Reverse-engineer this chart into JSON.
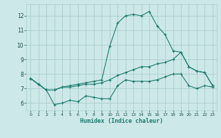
{
  "xlabel": "Humidex (Indice chaleur)",
  "x_ticks": [
    0,
    1,
    2,
    3,
    4,
    5,
    6,
    7,
    8,
    9,
    10,
    11,
    12,
    13,
    14,
    15,
    16,
    17,
    18,
    19,
    20,
    21,
    22,
    23
  ],
  "y_ticks": [
    6,
    7,
    8,
    9,
    10,
    11,
    12
  ],
  "xlim": [
    -0.5,
    23.5
  ],
  "ylim": [
    5.5,
    12.8
  ],
  "bg_color": "#cce8e8",
  "grid_color": "#aacccc",
  "line_color": "#1a7a6e",
  "line1_x": [
    0,
    1,
    2,
    3,
    4,
    5,
    6,
    7,
    8,
    9,
    10,
    11,
    12,
    13,
    14,
    15,
    16,
    17,
    18,
    19,
    20,
    21,
    22,
    23
  ],
  "line1_y": [
    7.7,
    7.3,
    6.9,
    5.9,
    6.0,
    6.2,
    6.1,
    6.5,
    6.4,
    6.3,
    6.3,
    7.2,
    7.6,
    7.5,
    7.5,
    7.5,
    7.6,
    7.8,
    8.0,
    8.0,
    7.2,
    7.0,
    7.2,
    7.1
  ],
  "line2_x": [
    0,
    1,
    2,
    3,
    4,
    5,
    6,
    7,
    8,
    9,
    10,
    11,
    12,
    13,
    14,
    15,
    16,
    17,
    18,
    19,
    20,
    21,
    22,
    23
  ],
  "line2_y": [
    7.7,
    7.3,
    6.9,
    6.9,
    7.1,
    7.1,
    7.2,
    7.3,
    7.3,
    7.4,
    7.6,
    7.9,
    8.1,
    8.3,
    8.5,
    8.5,
    8.7,
    8.8,
    9.0,
    9.5,
    8.5,
    8.2,
    8.1,
    7.2
  ],
  "line3_x": [
    0,
    1,
    2,
    3,
    4,
    5,
    6,
    7,
    8,
    9,
    10,
    11,
    12,
    13,
    14,
    15,
    16,
    17,
    18,
    19,
    20,
    21,
    22,
    23
  ],
  "line3_y": [
    7.7,
    7.3,
    6.9,
    6.9,
    7.1,
    7.2,
    7.3,
    7.4,
    7.5,
    7.6,
    9.9,
    11.5,
    12.0,
    12.1,
    12.0,
    12.3,
    11.3,
    10.7,
    9.6,
    9.5,
    8.5,
    8.2,
    8.1,
    7.2
  ]
}
